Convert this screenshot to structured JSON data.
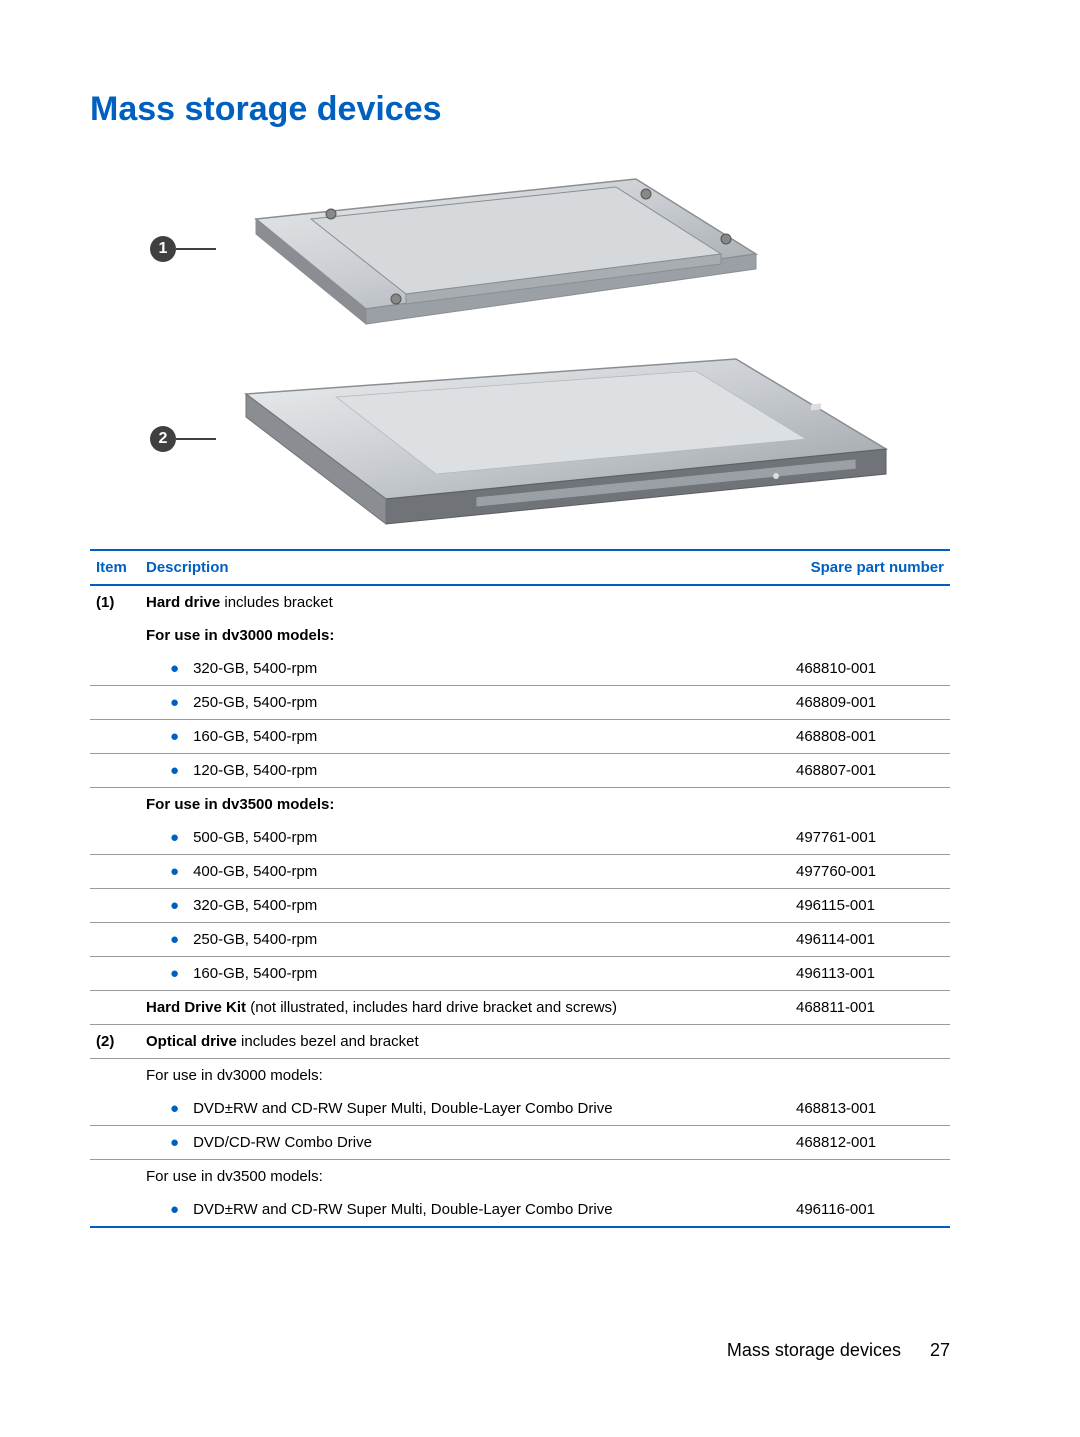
{
  "title": "Mass storage devices",
  "callouts": {
    "one": "1",
    "two": "2"
  },
  "headers": {
    "item": "Item",
    "description": "Description",
    "spn": "Spare part number"
  },
  "rows": [
    {
      "item": "(1)",
      "desc_bold": "Hard drive",
      "desc_rest": " includes bracket",
      "spn": "",
      "border": false,
      "indent": false,
      "wrap": true
    },
    {
      "item": "",
      "desc_bold": "For use in dv3000 models:",
      "desc_rest": "",
      "spn": "",
      "border": false,
      "indent": false
    },
    {
      "item": "",
      "bullet": true,
      "desc": "320-GB, 5400-rpm",
      "spn": "468810-001",
      "border": true
    },
    {
      "item": "",
      "bullet": true,
      "desc": "250-GB, 5400-rpm",
      "spn": "468809-001",
      "border": true
    },
    {
      "item": "",
      "bullet": true,
      "desc": "160-GB, 5400-rpm",
      "spn": "468808-001",
      "border": true
    },
    {
      "item": "",
      "bullet": true,
      "desc": "120-GB, 5400-rpm",
      "spn": "468807-001",
      "border": true
    },
    {
      "item": "",
      "desc_bold": "For use in dv3500 models:",
      "desc_rest": "",
      "spn": "",
      "border": false,
      "indent": false
    },
    {
      "item": "",
      "bullet": true,
      "desc": "500-GB, 5400-rpm",
      "spn": "497761-001",
      "border": true
    },
    {
      "item": "",
      "bullet": true,
      "desc": "400-GB, 5400-rpm",
      "spn": "497760-001",
      "border": true
    },
    {
      "item": "",
      "bullet": true,
      "desc": "320-GB, 5400-rpm",
      "spn": "496115-001",
      "border": true
    },
    {
      "item": "",
      "bullet": true,
      "desc": "250-GB, 5400-rpm",
      "spn": "496114-001",
      "border": true
    },
    {
      "item": "",
      "bullet": true,
      "desc": "160-GB, 5400-rpm",
      "spn": "496113-001",
      "border": true
    },
    {
      "item": "",
      "desc_bold": "Hard Drive Kit",
      "desc_rest": " (not illustrated, includes hard drive bracket and screws)",
      "spn": "468811-001",
      "border": true,
      "indent": false,
      "wrap": true
    },
    {
      "item": "(2)",
      "desc_bold": "Optical drive",
      "desc_rest": " includes bezel and bracket",
      "spn": "",
      "border": true,
      "indent": false,
      "wrap": true
    },
    {
      "item": "",
      "desc": "For use in dv3000 models:",
      "spn": "",
      "border": false,
      "indent": false
    },
    {
      "item": "",
      "bullet": true,
      "desc": "DVD±RW and CD-RW Super Multi, Double-Layer Combo Drive",
      "spn": "468813-001",
      "border": true
    },
    {
      "item": "",
      "bullet": true,
      "desc": "DVD/CD-RW Combo Drive",
      "spn": "468812-001",
      "border": true
    },
    {
      "item": "",
      "desc": "For use in dv3500 models:",
      "spn": "",
      "border": false,
      "indent": false
    },
    {
      "item": "",
      "bullet": true,
      "desc": "DVD±RW and CD-RW Super Multi, Double-Layer Combo Drive",
      "spn": "496116-001",
      "border": "last"
    }
  ],
  "footer": {
    "section": "Mass storage devices",
    "page": "27"
  },
  "colors": {
    "accent": "#0060c0",
    "callout_bg": "#404040",
    "device_body": "#c8ccd0",
    "device_edge": "#8a8e92",
    "device_highlight": "#e8eaec"
  }
}
